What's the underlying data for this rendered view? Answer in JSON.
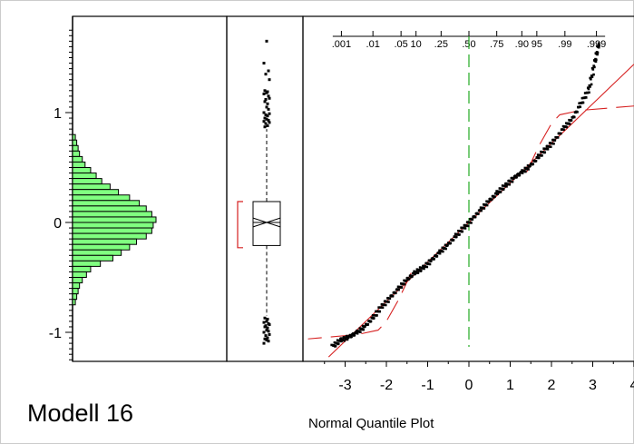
{
  "title": "Modell 16",
  "chart_data": [
    {
      "type": "bar",
      "orientation": "horizontal",
      "panel": "histogram",
      "bar_color": "#80ff80",
      "y_ticks": [
        "-1",
        "0",
        "1"
      ],
      "ylim": [
        -1.25,
        1.75
      ],
      "bins": [
        {
          "lo": 0.75,
          "hi": 0.8,
          "count": 2
        },
        {
          "lo": 0.7,
          "hi": 0.75,
          "count": 3
        },
        {
          "lo": 0.65,
          "hi": 0.7,
          "count": 4
        },
        {
          "lo": 0.6,
          "hi": 0.65,
          "count": 5
        },
        {
          "lo": 0.55,
          "hi": 0.6,
          "count": 7
        },
        {
          "lo": 0.5,
          "hi": 0.55,
          "count": 9
        },
        {
          "lo": 0.45,
          "hi": 0.5,
          "count": 13
        },
        {
          "lo": 0.4,
          "hi": 0.45,
          "count": 17
        },
        {
          "lo": 0.35,
          "hi": 0.4,
          "count": 21
        },
        {
          "lo": 0.3,
          "hi": 0.35,
          "count": 27
        },
        {
          "lo": 0.25,
          "hi": 0.3,
          "count": 33
        },
        {
          "lo": 0.2,
          "hi": 0.25,
          "count": 41
        },
        {
          "lo": 0.15,
          "hi": 0.2,
          "count": 48
        },
        {
          "lo": 0.1,
          "hi": 0.15,
          "count": 53
        },
        {
          "lo": 0.05,
          "hi": 0.1,
          "count": 57
        },
        {
          "lo": 0.0,
          "hi": 0.05,
          "count": 60
        },
        {
          "lo": -0.05,
          "hi": 0.0,
          "count": 58
        },
        {
          "lo": -0.1,
          "hi": -0.05,
          "count": 57
        },
        {
          "lo": -0.15,
          "hi": -0.1,
          "count": 53
        },
        {
          "lo": -0.2,
          "hi": -0.15,
          "count": 46
        },
        {
          "lo": -0.25,
          "hi": -0.2,
          "count": 41
        },
        {
          "lo": -0.3,
          "hi": -0.25,
          "count": 35
        },
        {
          "lo": -0.35,
          "hi": -0.3,
          "count": 29
        },
        {
          "lo": -0.4,
          "hi": -0.35,
          "count": 20
        },
        {
          "lo": -0.45,
          "hi": -0.4,
          "count": 13
        },
        {
          "lo": -0.5,
          "hi": -0.45,
          "count": 10
        },
        {
          "lo": -0.55,
          "hi": -0.5,
          "count": 7
        },
        {
          "lo": -0.6,
          "hi": -0.55,
          "count": 5
        },
        {
          "lo": -0.65,
          "hi": -0.6,
          "count": 4
        },
        {
          "lo": -0.7,
          "hi": -0.65,
          "count": 3
        },
        {
          "lo": -0.75,
          "hi": -0.7,
          "count": 2
        }
      ]
    },
    {
      "type": "box",
      "panel": "outlier box plot",
      "median": 0.0,
      "q1": -0.21,
      "q3": 0.19,
      "whisker_low": -0.85,
      "whisker_high": 0.85,
      "notch_low": -0.04,
      "notch_high": 0.04,
      "shortest_half_bracket": [
        -0.23,
        0.19
      ],
      "outliers_high": [
        1.65,
        1.45,
        1.38,
        1.35,
        1.3,
        1.2,
        1.19,
        1.18,
        1.17,
        1.15,
        1.13,
        1.12,
        1.1,
        1.08,
        1.05,
        1.03,
        1.0,
        0.99,
        0.98,
        0.97,
        0.95,
        0.94,
        0.93,
        0.92,
        0.91,
        0.9,
        0.88,
        0.87
      ],
      "outliers_low": [
        -0.87,
        -0.88,
        -0.9,
        -0.91,
        -0.92,
        -0.93,
        -0.94,
        -0.95,
        -0.96,
        -0.98,
        -0.99,
        -1.0,
        -1.02,
        -1.03,
        -1.05,
        -1.06,
        -1.07,
        -1.08,
        -1.1
      ]
    },
    {
      "type": "scatter",
      "panel": "normal quantile plot",
      "xlabel": "Normal Quantile Plot",
      "x_ticks": [
        "-3",
        "-2",
        "-1",
        "0",
        "1",
        "2",
        "3",
        "4"
      ],
      "xlim": [
        -3.9,
        4.0
      ],
      "prob_ticks": [
        {
          "label": ".001",
          "z": -3.09
        },
        {
          "label": ".01",
          "z": -2.326
        },
        {
          "label": ".05",
          "z": -1.645
        },
        {
          "label": "10",
          "z": -1.282
        },
        {
          "label": ".25",
          "z": -0.674
        },
        {
          "label": ".50",
          "z": 0.0
        },
        {
          "label": ".75",
          "z": 0.674
        },
        {
          "label": ".90",
          "z": 1.282
        },
        {
          "label": "95",
          "z": 1.645
        },
        {
          "label": ".99",
          "z": 2.326
        },
        {
          "label": ".999",
          "z": 3.09
        }
      ],
      "line_color": "#d62020",
      "center_line_color": "#22aa22",
      "quantiles": [
        [
          -3.3,
          -1.13
        ],
        [
          -3.1,
          -1.07
        ],
        [
          -2.9,
          -1.04
        ],
        [
          -2.7,
          -1.0
        ],
        [
          -2.5,
          -0.94
        ],
        [
          -2.3,
          -0.86
        ],
        [
          -2.1,
          -0.76
        ],
        [
          -1.9,
          -0.68
        ],
        [
          -1.7,
          -0.6
        ],
        [
          -1.5,
          -0.52
        ],
        [
          -1.3,
          -0.46
        ],
        [
          -1.1,
          -0.41
        ],
        [
          -0.9,
          -0.34
        ],
        [
          -0.7,
          -0.27
        ],
        [
          -0.5,
          -0.2
        ],
        [
          -0.3,
          -0.12
        ],
        [
          -0.1,
          -0.04
        ],
        [
          0.1,
          0.04
        ],
        [
          0.3,
          0.12
        ],
        [
          0.5,
          0.2
        ],
        [
          0.7,
          0.27
        ],
        [
          0.9,
          0.34
        ],
        [
          1.1,
          0.41
        ],
        [
          1.3,
          0.46
        ],
        [
          1.5,
          0.52
        ],
        [
          1.7,
          0.6
        ],
        [
          1.9,
          0.68
        ],
        [
          2.1,
          0.76
        ],
        [
          2.3,
          0.86
        ],
        [
          2.5,
          0.94
        ],
        [
          2.7,
          1.07
        ],
        [
          2.9,
          1.2
        ],
        [
          3.05,
          1.45
        ],
        [
          3.15,
          1.63
        ]
      ],
      "fit_line": {
        "intercept": 0.0,
        "slope": 0.36
      },
      "conf_lower": [
        [
          -1.4,
          -0.46
        ],
        [
          -1.7,
          -0.7
        ],
        [
          -2.0,
          -0.9
        ],
        [
          -2.2,
          -0.98
        ],
        [
          -2.7,
          -1.02
        ],
        [
          -3.9,
          -1.06
        ]
      ],
      "conf_upper": [
        [
          1.4,
          0.46
        ],
        [
          1.7,
          0.7
        ],
        [
          2.0,
          0.9
        ],
        [
          2.2,
          0.98
        ],
        [
          2.7,
          1.02
        ],
        [
          4.0,
          1.06
        ]
      ]
    }
  ]
}
